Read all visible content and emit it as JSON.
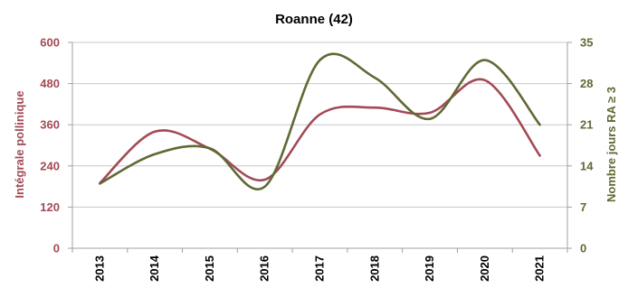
{
  "chart_data": {
    "type": "line",
    "title": "Roanne (42)",
    "categories": [
      "2013",
      "2014",
      "2015",
      "2016",
      "2017",
      "2018",
      "2019",
      "2020",
      "2021"
    ],
    "y_left": {
      "label": "Intégrale pollinique",
      "ticks": [
        "0",
        "120",
        "240",
        "360",
        "480",
        "600"
      ],
      "ylim": [
        0,
        600
      ],
      "color": "#a34a56"
    },
    "y_right": {
      "label": "Nombre jours RA ≥ 3",
      "ticks": [
        "0",
        "7",
        "14",
        "21",
        "28",
        "35"
      ],
      "ylim": [
        0,
        35
      ],
      "color": "#5f6a35"
    },
    "series": [
      {
        "axis": "left",
        "color": "#a34a56",
        "values": [
          190,
          340,
          290,
          200,
          390,
          410,
          395,
          490,
          270
        ]
      },
      {
        "axis": "right",
        "color": "#5f6a35",
        "values": [
          11,
          16,
          17,
          10.5,
          32,
          29,
          22,
          32,
          21
        ]
      }
    ],
    "grid": true,
    "legend": "none"
  }
}
